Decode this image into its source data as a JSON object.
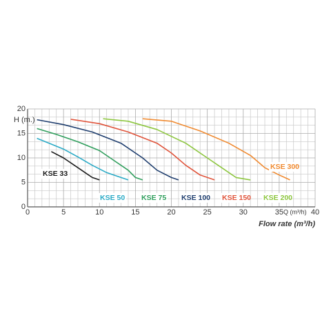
{
  "chart_data": {
    "type": "line",
    "y_label": "H (m.)",
    "x_unit_label": "Q (m³/h)",
    "x_label": "Flow rate (m³/h)",
    "xlim": [
      0,
      40
    ],
    "ylim": [
      0,
      20
    ],
    "xticks": [
      0,
      5,
      10,
      15,
      20,
      25,
      30,
      35,
      40
    ],
    "yticks": [
      0,
      5,
      10,
      15,
      20
    ],
    "grid": true,
    "grid_x_subdivisions": 5,
    "grid_y_subdivisions": 3,
    "series": [
      {
        "name": "KSE 33",
        "color": "#1a1a1a",
        "x": [
          3.3,
          5,
          7,
          8,
          9,
          10
        ],
        "values": [
          11.3,
          10,
          8,
          7,
          6,
          5.5
        ]
      },
      {
        "name": "KSE 50",
        "color": "#2aaac6",
        "x": [
          1.3,
          3,
          5,
          7,
          9,
          11,
          13,
          14
        ],
        "values": [
          14,
          13,
          11.8,
          10.2,
          8.5,
          7,
          6,
          5.5
        ]
      },
      {
        "name": "KSE 75",
        "color": "#2f9e5c",
        "x": [
          1.3,
          4,
          7,
          10,
          12,
          14,
          15,
          16
        ],
        "values": [
          16,
          14.8,
          13.3,
          11.5,
          9.5,
          7.5,
          6,
          5.5
        ]
      },
      {
        "name": "KSE 100",
        "color": "#1f3e6e",
        "x": [
          1.3,
          5,
          9,
          13,
          16,
          18,
          20,
          21
        ],
        "values": [
          17.8,
          16.8,
          15.3,
          13,
          10,
          7.5,
          6,
          5.5
        ]
      },
      {
        "name": "KSE 150",
        "color": "#e0533a",
        "x": [
          6,
          10,
          14,
          18,
          20,
          22,
          24,
          26
        ],
        "values": [
          17.9,
          17,
          15.3,
          13,
          11,
          8.5,
          6.5,
          5.5
        ]
      },
      {
        "name": "KSE 200",
        "color": "#8dc63f",
        "x": [
          10.5,
          14,
          18,
          22,
          25,
          27,
          29,
          31
        ],
        "values": [
          18,
          17.5,
          15.8,
          13,
          10,
          8,
          6,
          5.5
        ]
      },
      {
        "name": "KSE 300",
        "color": "#f08a30",
        "x": [
          16,
          20,
          24,
          28,
          31,
          33,
          35,
          36.5
        ],
        "values": [
          18,
          17.5,
          15.5,
          13,
          10.5,
          8,
          6.5,
          5.5
        ]
      }
    ]
  }
}
